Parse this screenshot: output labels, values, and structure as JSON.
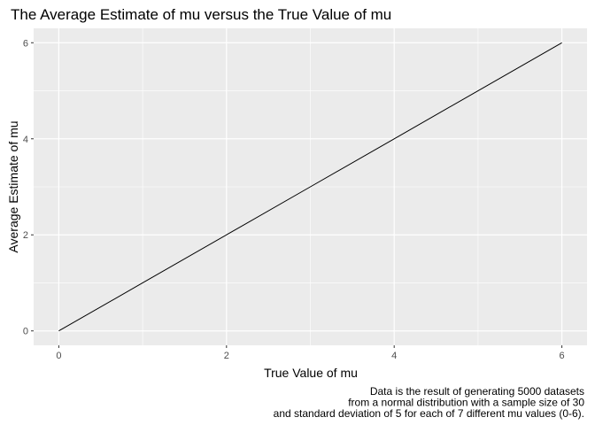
{
  "chart_data": {
    "type": "line",
    "title": "The Average Estimate of mu versus the True Value of mu",
    "xlabel": "True Value of mu",
    "ylabel": "Average Estimate of mu",
    "x": [
      0,
      1,
      2,
      3,
      4,
      5,
      6
    ],
    "series": [
      {
        "values": [
          0.0,
          1.0,
          2.0,
          3.0,
          4.0,
          5.0,
          6.0
        ]
      }
    ],
    "xlim": [
      -0.3,
      6.3
    ],
    "ylim": [
      -0.3,
      6.3
    ],
    "xticks": [
      0,
      2,
      4,
      6
    ],
    "yticks": [
      0,
      2,
      4,
      6
    ],
    "xtick_labels": [
      "0",
      "2",
      "4",
      "6"
    ],
    "ytick_labels": [
      "0",
      "2",
      "4",
      "6"
    ],
    "grid": true,
    "background": "#ebebeb",
    "grid_color": "#ffffff",
    "line_color": "#000000",
    "caption": [
      "Data is the result of generating 5000 datasets",
      "from a normal distribution with a sample size of 30",
      "and standard deviation of 5 for each of 7 different mu values (0-6)."
    ]
  }
}
